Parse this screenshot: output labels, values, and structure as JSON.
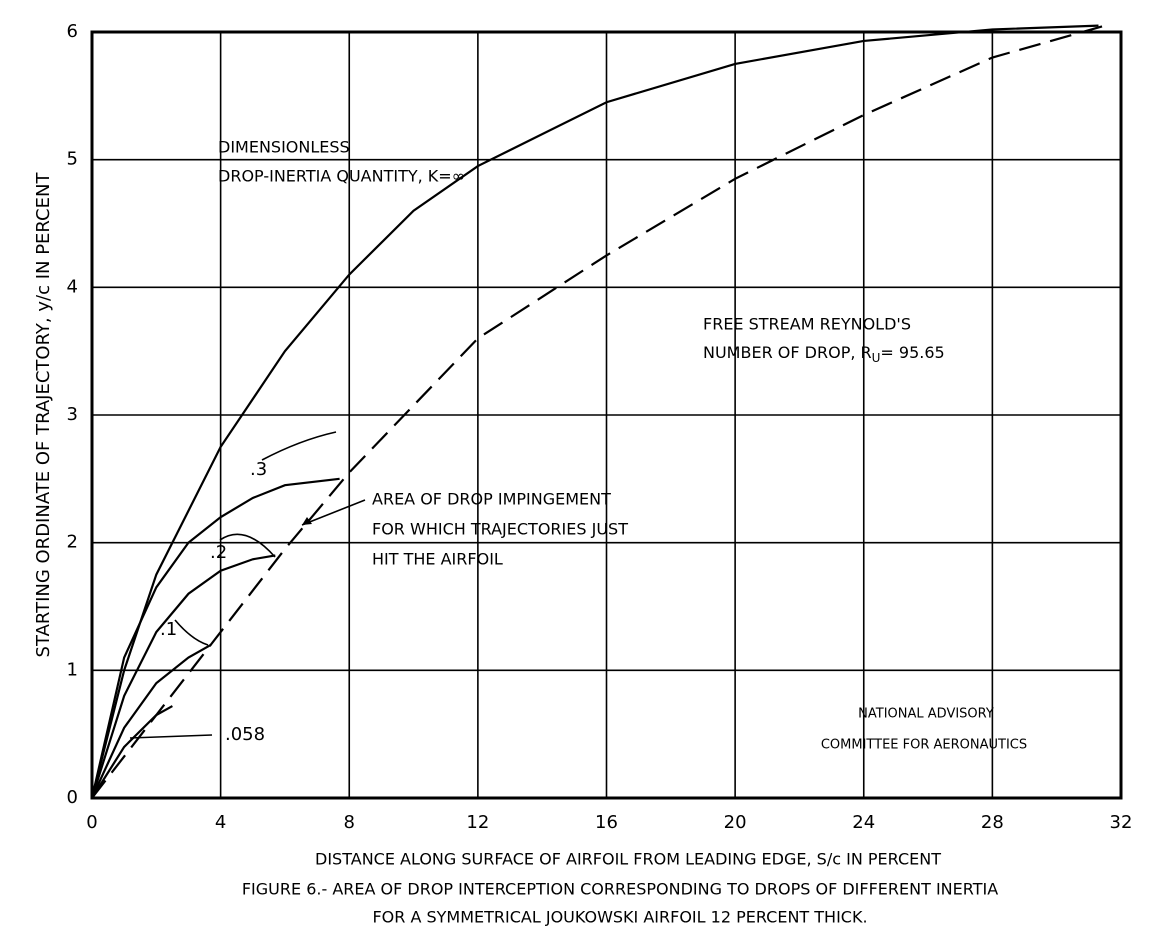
{
  "chart_data": {
    "type": "line",
    "x_label": "DISTANCE ALONG SURFACE OF AIRFOIL FROM LEADING EDGE, S/c IN PERCENT",
    "y_label": "STARTING ORDINATE OF TRAJECTORY, y/c IN PERCENT",
    "caption": [
      "FIGURE 6.- AREA OF DROP INTERCEPTION CORRESPONDING TO DROPS OF DIFFERENT INERTIA",
      "FOR A SYMMETRICAL JOUKOWSKI AIRFOIL 12 PERCENT THICK."
    ],
    "annotations": {
      "inertia": [
        "DIMENSIONLESS",
        "DROP-INERTIA QUANTITY, K=∞"
      ],
      "reynolds": [
        "FREE STREAM REYNOLD'S",
        "NUMBER OF DROP, R",
        "U",
        "= 95.65"
      ],
      "impingement": [
        "AREA OF DROP IMPINGEMENT",
        "FOR WHICH TRAJECTORIES JUST",
        "HIT THE AIRFOIL"
      ],
      "credit": [
        "NATIONAL ADVISORY",
        "COMMITTEE FOR AERONAUTICS"
      ]
    },
    "xlim": [
      0,
      32
    ],
    "xticks": [
      0,
      4,
      8,
      12,
      16,
      20,
      24,
      28,
      32
    ],
    "ylim": [
      0,
      6
    ],
    "yticks": [
      0,
      1,
      2,
      3,
      4,
      5,
      6
    ],
    "grid": true,
    "series": [
      {
        "color": "#000000",
        "dashed": false,
        "x": [
          0,
          1,
          2,
          4,
          6,
          8,
          10,
          12,
          16,
          20,
          24,
          28,
          31.3
        ],
        "values": [
          0,
          1.0,
          1.75,
          2.75,
          3.5,
          4.1,
          4.6,
          4.95,
          5.45,
          5.75,
          5.93,
          6.02,
          6.05
        ]
      },
      {
        "color": "#000000",
        "dashed": true,
        "x": [
          0,
          2,
          4,
          6,
          8,
          12,
          16,
          20,
          24,
          28,
          31.5
        ],
        "values": [
          0,
          0.65,
          1.3,
          1.95,
          2.55,
          3.6,
          4.25,
          4.85,
          5.35,
          5.8,
          6.05
        ]
      },
      {
        "name": ".3",
        "color": "#000000",
        "dashed": false,
        "x": [
          0,
          1,
          2,
          3,
          4,
          5,
          6,
          7.7
        ],
        "values": [
          0,
          1.1,
          1.65,
          2.0,
          2.2,
          2.35,
          2.45,
          2.5
        ]
      },
      {
        "name": ".2",
        "color": "#000000",
        "dashed": false,
        "x": [
          0,
          1,
          2,
          3,
          4,
          5,
          5.7
        ],
        "values": [
          0,
          0.8,
          1.3,
          1.6,
          1.78,
          1.87,
          1.9
        ]
      },
      {
        "name": ".1",
        "color": "#000000",
        "dashed": false,
        "x": [
          0,
          1,
          2,
          3,
          3.7
        ],
        "values": [
          0,
          0.55,
          0.9,
          1.1,
          1.2
        ]
      },
      {
        "name": ".058",
        "color": "#000000",
        "dashed": false,
        "x": [
          0,
          1,
          2,
          2.5
        ],
        "values": [
          0,
          0.4,
          0.65,
          0.72
        ]
      }
    ]
  }
}
